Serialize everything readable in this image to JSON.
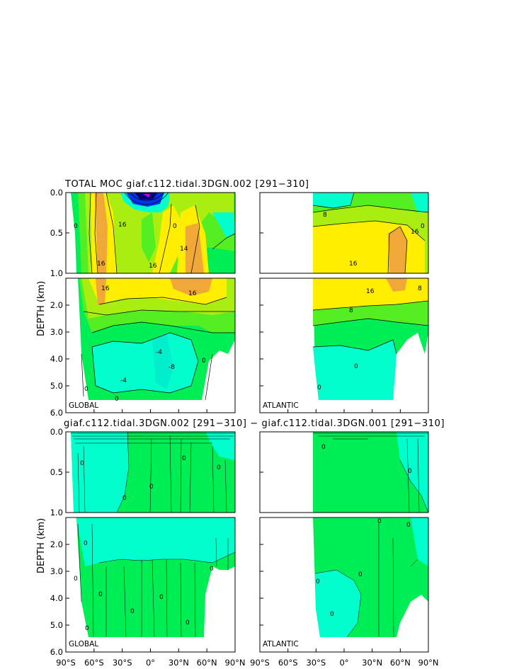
{
  "colors": {
    "cyan": "#00ffcc",
    "green": "#00ee55",
    "lightgreen": "#55ee22",
    "yellowgreen": "#aaee11",
    "yellow": "#ffee00",
    "orange": "#f0a838",
    "blue": "#0033ee",
    "darkblue": "#000088",
    "magenta": "#cc00cc"
  },
  "chart_data": [
    {
      "type": "heatmap",
      "title": "TOTAL MOC giaf.c112.tidal.3DGN.002 [291−310]",
      "ylabel": "DEPTH (km)",
      "y_ticks_upper": [
        "0.0",
        "0.5",
        "1.0"
      ],
      "y_ticks_lower": [
        "2.0",
        "3.0",
        "4.0",
        "5.0",
        "6.0"
      ],
      "ylim": [
        0,
        6
      ],
      "panels": [
        {
          "region": "GLOBAL",
          "xlim": [
            -90,
            90
          ],
          "contour_labels": [
            "16",
            "16",
            "16",
            "14",
            "16",
            "16",
            "0",
            "0",
            "-8",
            "0",
            "-4",
            "-4",
            "0",
            "0"
          ]
        },
        {
          "region": "ATLANTIC",
          "xlim": [
            -90,
            90
          ],
          "contour_labels": [
            "8",
            "16",
            "16",
            "16",
            "8",
            "8",
            "0",
            "0",
            "0"
          ]
        }
      ]
    },
    {
      "type": "heatmap",
      "title": "giaf.c112.tidal.3DGN.002 [291−310] − giaf.c112.tidal.3DGN.001 [291−310]",
      "ylabel": "DEPTH (km)",
      "y_ticks_upper": [
        "0.0",
        "0.5",
        "1.0"
      ],
      "y_ticks_lower": [
        "2.0",
        "3.0",
        "4.0",
        "5.0",
        "6.0"
      ],
      "ylim": [
        0,
        6
      ],
      "x_ticks": [
        "90°S",
        "60°S",
        "30°S",
        "0°",
        "30°N",
        "60°N",
        "90°N"
      ],
      "panels": [
        {
          "region": "GLOBAL",
          "xlim": [
            -90,
            90
          ],
          "contour_labels": [
            "0",
            "0",
            "0",
            "0",
            "0",
            "0",
            "0",
            "0",
            "0",
            "0",
            "0",
            "0",
            "0"
          ]
        },
        {
          "region": "ATLANTIC",
          "xlim": [
            -90,
            90
          ],
          "contour_labels": [
            "0",
            "0",
            "0",
            "0",
            "0",
            "0",
            "0"
          ]
        }
      ]
    }
  ]
}
